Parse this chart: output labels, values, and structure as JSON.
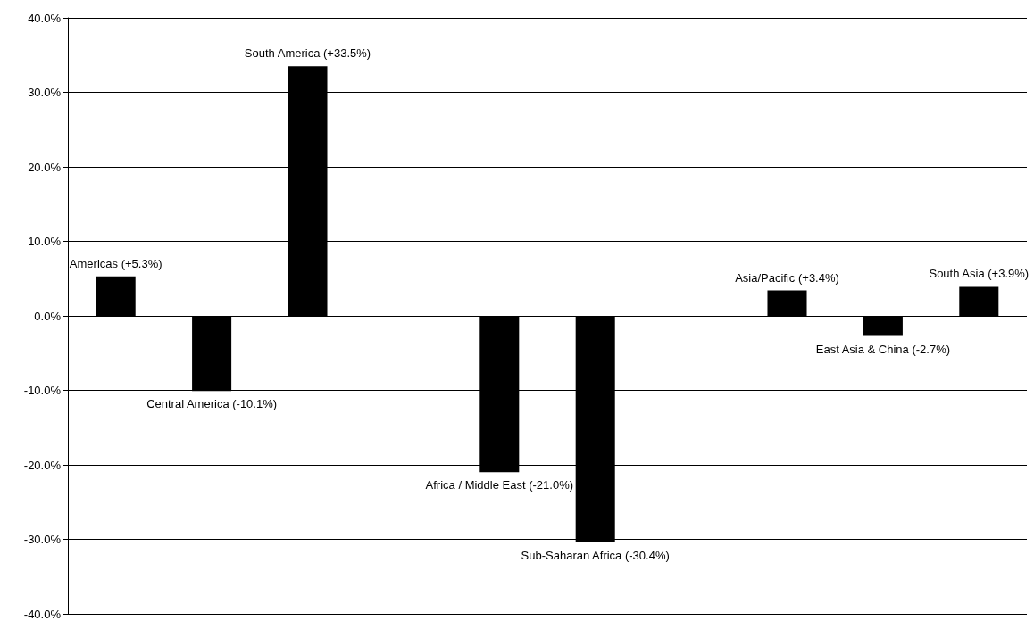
{
  "chart_data": {
    "type": "bar",
    "categories": [
      null,
      null,
      null,
      null,
      null,
      null,
      null,
      null,
      null,
      null
    ],
    "values": [
      5.3,
      -10.1,
      33.5,
      null,
      -21.0,
      -30.4,
      null,
      3.4,
      -2.7,
      3.9
    ],
    "value_labels": [
      "Americas (+5.3%)",
      "Central America (-10.1%)",
      "South America (+33.5%)",
      null,
      "Africa / Middle East (-21.0%)",
      "Sub-Saharan Africa (-30.4%)",
      null,
      "Asia/Pacific (+3.4%)",
      "East Asia & China (-2.7%)",
      "South Asia (+3.9%)"
    ],
    "color": "#000000",
    "ylim": [
      -40,
      40
    ],
    "yticks": [
      {
        "value": -40,
        "label": "-40.0%"
      },
      {
        "value": -30,
        "label": "-30.0%"
      },
      {
        "value": -20,
        "label": "-20.0%"
      },
      {
        "value": -10,
        "label": "-10.0%"
      },
      {
        "value": 0,
        "label": "0.0%"
      },
      {
        "value": 10,
        "label": "10.0%"
      },
      {
        "value": 20,
        "label": "20.0%"
      },
      {
        "value": 30,
        "label": "30.0%"
      },
      {
        "value": 40,
        "label": "40.0%"
      }
    ],
    "grid": "y",
    "tick_labels": "y"
  }
}
